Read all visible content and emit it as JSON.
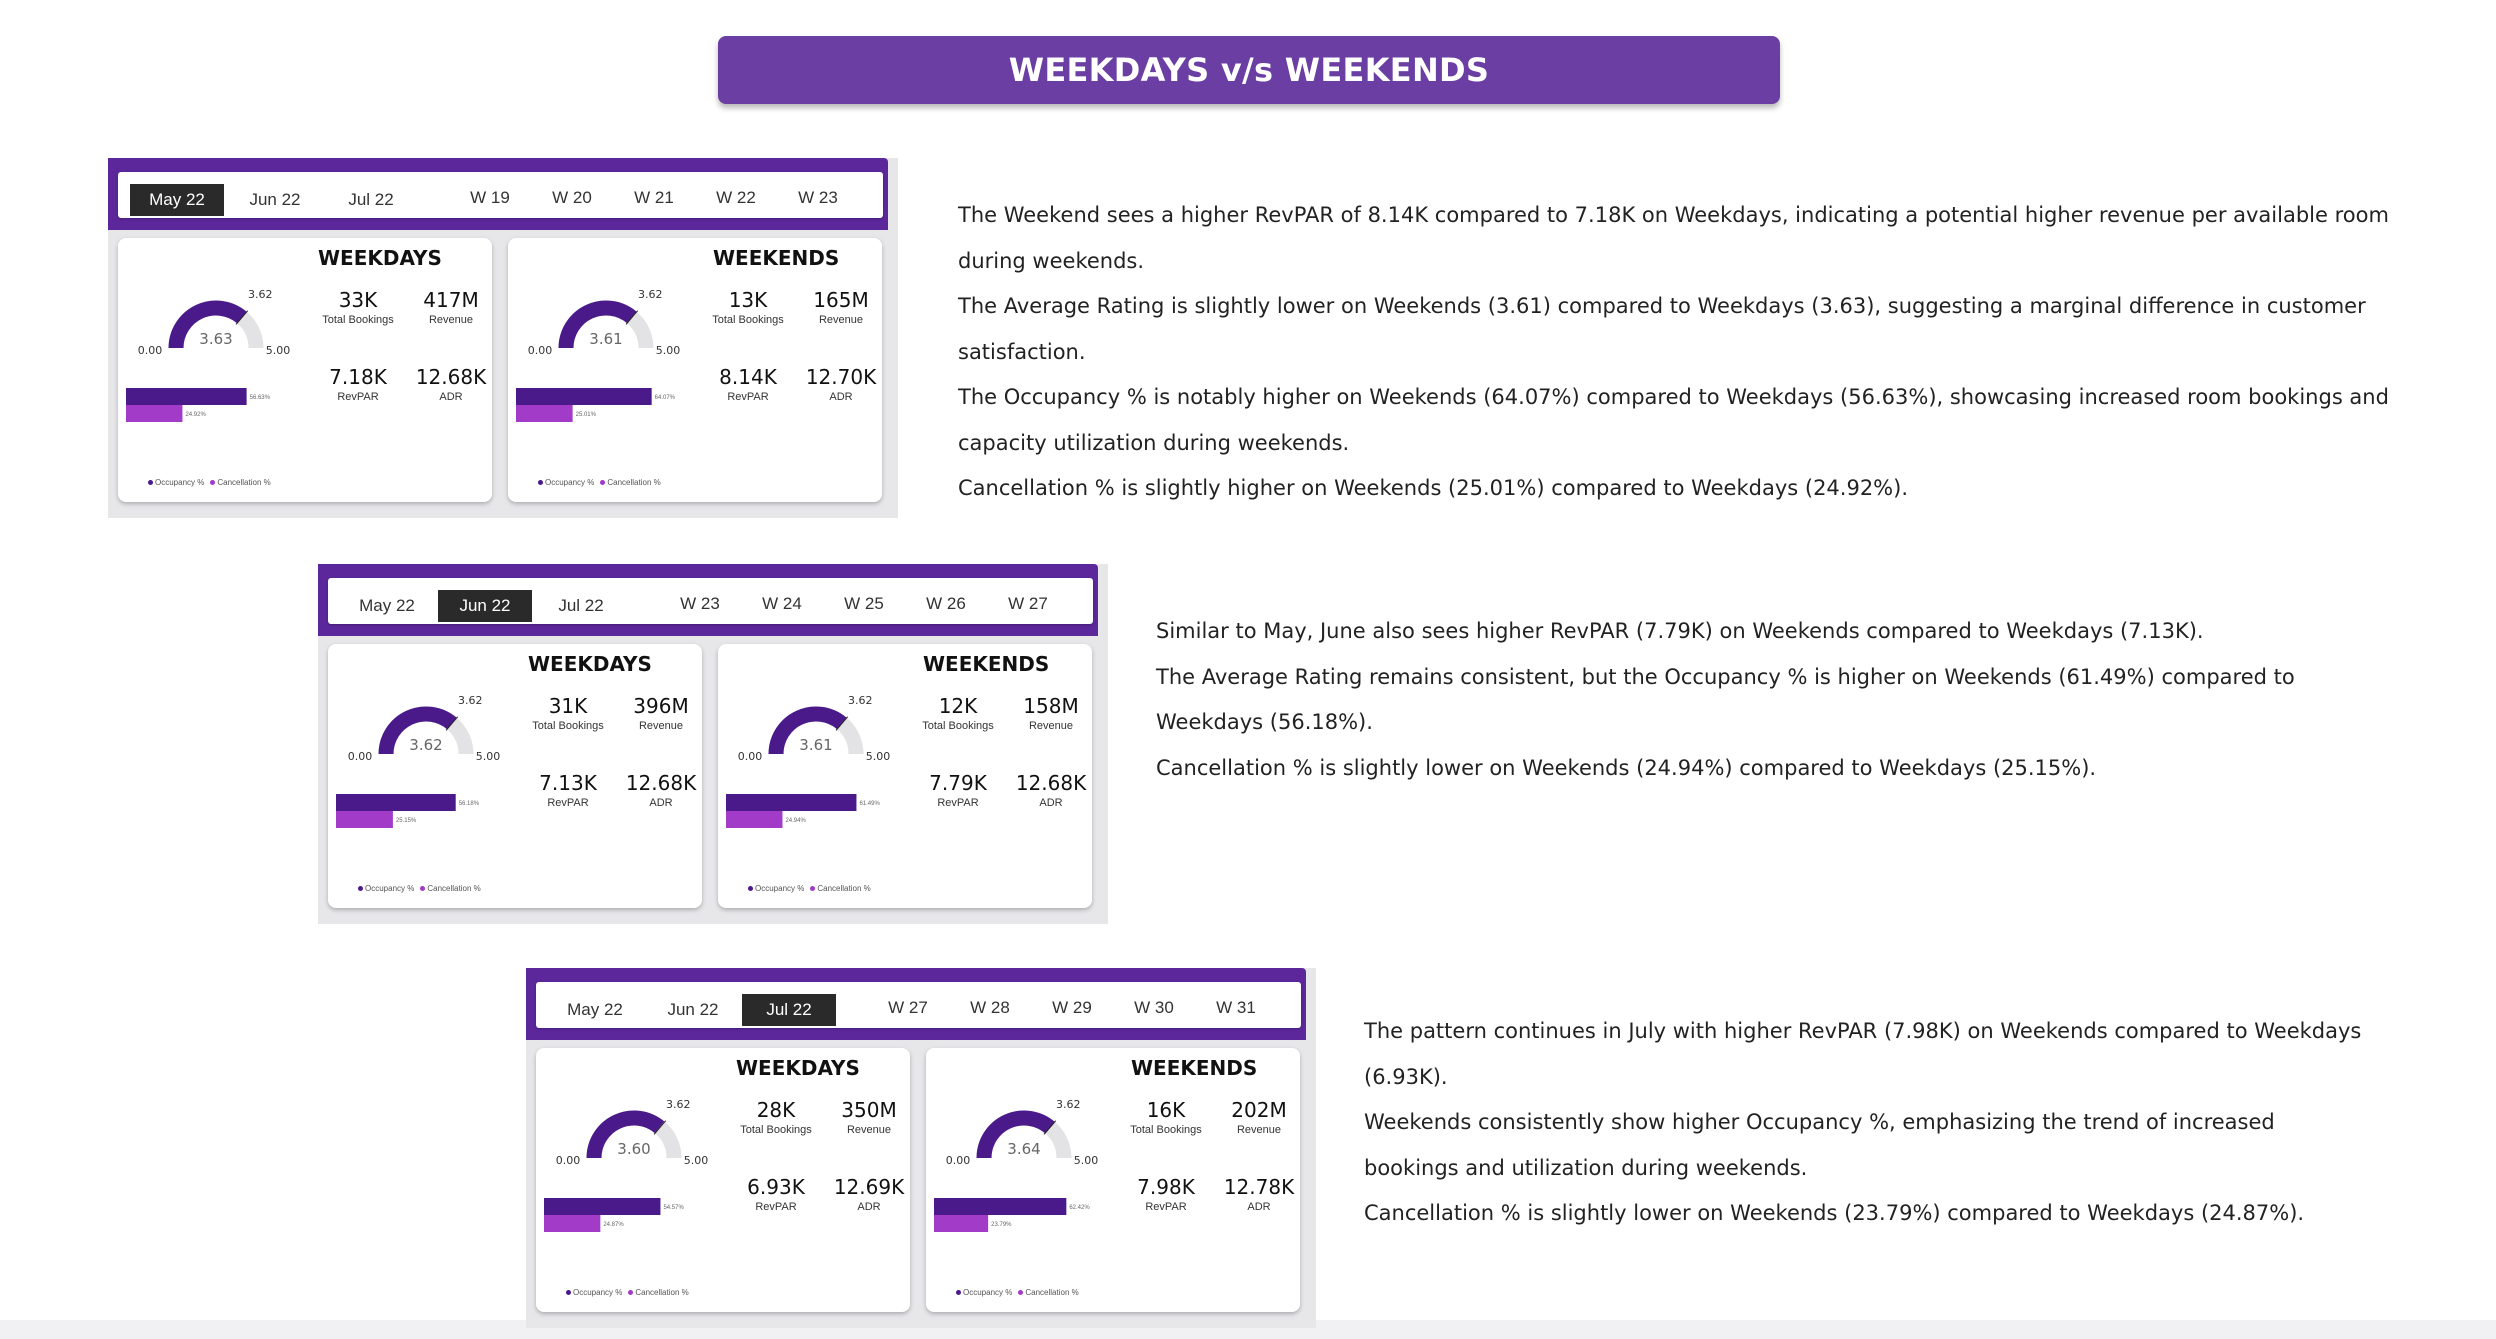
{
  "title": "WEEKDAYS v/s WEEKENDS",
  "colors": {
    "accent": "#5b279b",
    "banner": "#6a3ea2",
    "occupancy_bar": "#4b1a8a",
    "cancel_bar": "#a33bc9"
  },
  "labels": {
    "weekdays": "WEEKDAYS",
    "weekends": "WEEKENDS",
    "total_bookings": "Total Bookings",
    "revenue": "Revenue",
    "revpar": "RevPAR",
    "adr": "ADR",
    "gauge_min": "0.00",
    "gauge_max": "5.00",
    "gauge_target": "3.62",
    "legend_occupancy": "Occupancy %",
    "legend_cancellation": "Cancellation %"
  },
  "months": [
    "May 22",
    "Jun 22",
    "Jul 22"
  ],
  "sections": [
    {
      "active_month": 0,
      "weeks": [
        "W 19",
        "W 20",
        "W 21",
        "W 22",
        "W 23"
      ],
      "weekdays": {
        "rating": "3.63",
        "rating_value": 3.63,
        "bookings": "33K",
        "revenue": "417M",
        "revpar": "7.18K",
        "adr": "12.68K",
        "occupancy": "56.63%",
        "occupancy_value": 56.63,
        "cancellation": "24.92%",
        "cancellation_value": 24.92
      },
      "weekends": {
        "rating": "3.61",
        "rating_value": 3.61,
        "bookings": "13K",
        "revenue": "165M",
        "revpar": "8.14K",
        "adr": "12.70K",
        "occupancy": "64.07%",
        "occupancy_value": 64.07,
        "cancellation": "25.01%",
        "cancellation_value": 25.01
      },
      "text": [
        "The Weekend sees a higher RevPAR of 8.14K compared to 7.18K on Weekdays, indicating a potential higher revenue per available room during weekends.",
        "The Average Rating is slightly lower on Weekends (3.61) compared to Weekdays (3.63), suggesting a marginal difference in customer satisfaction.",
        "The Occupancy % is notably higher on Weekends (64.07%) compared to Weekdays (56.63%), showcasing increased room bookings and capacity utilization during weekends.",
        "Cancellation % is slightly higher on Weekends (25.01%) compared to Weekdays (24.92%)."
      ]
    },
    {
      "active_month": 1,
      "weeks": [
        "W 23",
        "W 24",
        "W 25",
        "W 26",
        "W 27"
      ],
      "weekdays": {
        "rating": "3.62",
        "rating_value": 3.62,
        "bookings": "31K",
        "revenue": "396M",
        "revpar": "7.13K",
        "adr": "12.68K",
        "occupancy": "56.18%",
        "occupancy_value": 56.18,
        "cancellation": "25.15%",
        "cancellation_value": 25.15
      },
      "weekends": {
        "rating": "3.61",
        "rating_value": 3.61,
        "bookings": "12K",
        "revenue": "158M",
        "revpar": "7.79K",
        "adr": "12.68K",
        "occupancy": "61.49%",
        "occupancy_value": 61.49,
        "cancellation": "24.94%",
        "cancellation_value": 24.94
      },
      "text": [
        "Similar to May, June also sees higher RevPAR (7.79K) on Weekends compared to Weekdays (7.13K).",
        "The Average Rating remains consistent, but the Occupancy % is higher on Weekends (61.49%) compared to Weekdays (56.18%).",
        "Cancellation % is slightly lower on Weekends (24.94%) compared to Weekdays (25.15%)."
      ]
    },
    {
      "active_month": 2,
      "weeks": [
        "W 27",
        "W 28",
        "W 29",
        "W 30",
        "W 31"
      ],
      "weekdays": {
        "rating": "3.60",
        "rating_value": 3.6,
        "bookings": "28K",
        "revenue": "350M",
        "revpar": "6.93K",
        "adr": "12.69K",
        "occupancy": "54.57%",
        "occupancy_value": 54.57,
        "cancellation": "24.87%",
        "cancellation_value": 24.87
      },
      "weekends": {
        "rating": "3.64",
        "rating_value": 3.64,
        "bookings": "16K",
        "revenue": "202M",
        "revpar": "7.98K",
        "adr": "12.78K",
        "occupancy": "62.42%",
        "occupancy_value": 62.42,
        "cancellation": "23.79%",
        "cancellation_value": 23.79
      },
      "text": [
        "The pattern continues in July with higher RevPAR (7.98K) on Weekends compared to Weekdays (6.93K).",
        "Weekends consistently show higher Occupancy %, emphasizing the trend of increased bookings and utilization during weekends.",
        "Cancellation % is slightly lower on Weekends (23.79%) compared to Weekdays (24.87%)."
      ]
    }
  ]
}
